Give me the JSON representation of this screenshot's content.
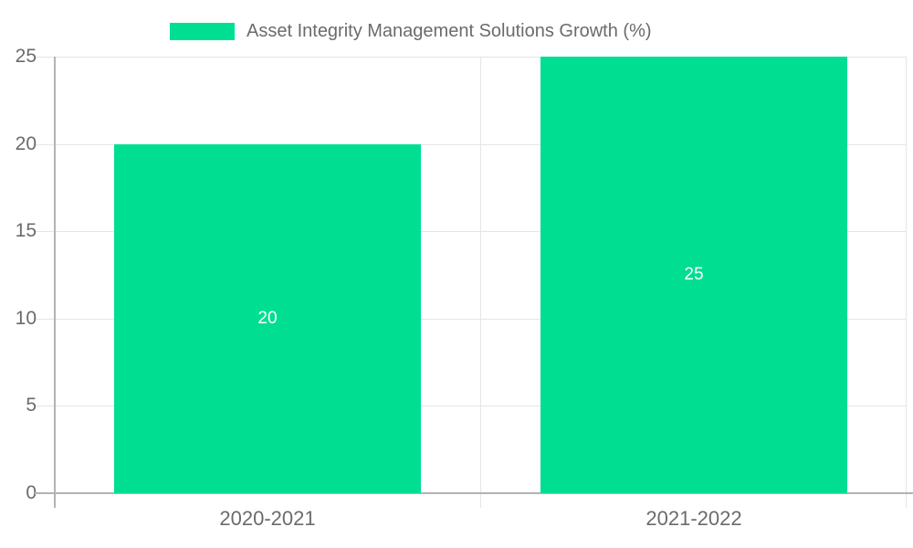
{
  "legend": {
    "items": [
      {
        "label": "Asset Integrity Management Solutions Growth (%)",
        "color": "#00DE92"
      }
    ]
  },
  "chart_data": {
    "type": "bar",
    "title": "Asset Integrity Management Solutions Growth (%)",
    "categories": [
      "2020-2021",
      "2021-2022"
    ],
    "series": [
      {
        "name": "Asset Integrity Management Solutions Growth (%)",
        "values": [
          20,
          25
        ]
      }
    ],
    "data_labels": [
      "20",
      "25"
    ],
    "xlabel": "",
    "ylabel": "",
    "ylim": [
      0,
      25
    ],
    "yticks": [
      0,
      5,
      10,
      15,
      20,
      25
    ],
    "grid": true,
    "legend_position": "top",
    "bar_color": "#00DE92",
    "label_color": "#6b6b6b",
    "grid_color": "#e5e5e5",
    "axis_color": "#b3b3b3",
    "data_label_color": "#ffffff"
  }
}
